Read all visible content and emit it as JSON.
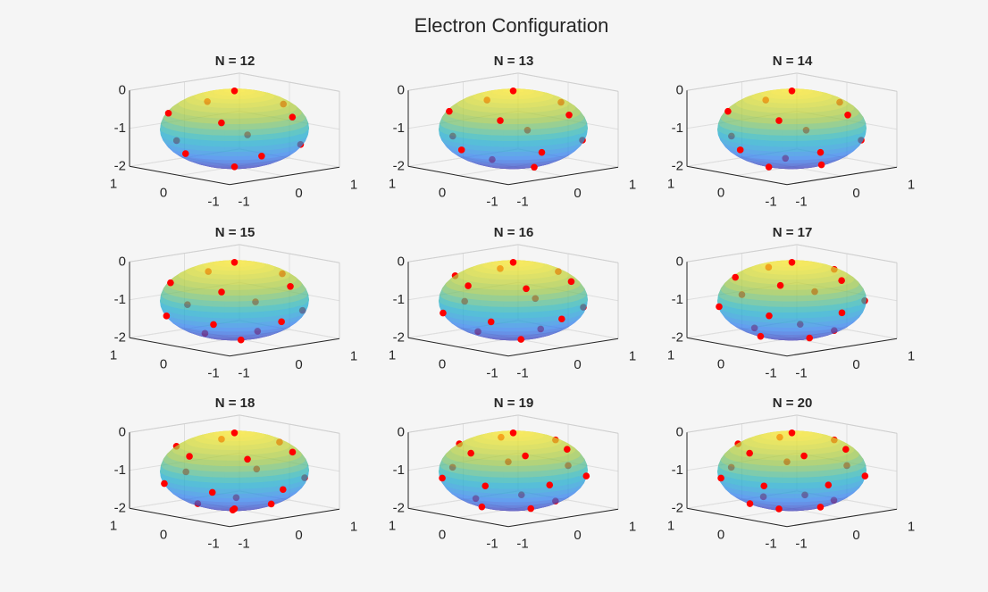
{
  "figure": {
    "title": "Electron Configuration",
    "background": "#f5f5f5"
  },
  "style": {
    "point_color": "#ff0000",
    "surface_colormap": "parula",
    "surface_alpha": 0.72,
    "view": {
      "azimuth": -37.5,
      "elevation": 30
    }
  },
  "axes_common": {
    "xlim": [
      -1,
      1
    ],
    "ylim": [
      -1,
      1
    ],
    "zlim": [
      -2,
      0
    ],
    "xticks": [
      "-1",
      "0",
      "1"
    ],
    "yticks": [
      "-1",
      "0",
      "1"
    ],
    "zticks": [
      "-2",
      "-1",
      "0"
    ],
    "grid": true,
    "surface": {
      "shape": "sphere",
      "center": [
        0,
        0,
        -1
      ],
      "radius": 1
    }
  },
  "chart_data": [
    {
      "type": "scatter3",
      "title": "N = 12",
      "points": [
        [
          0,
          0,
          0
        ],
        [
          0.89,
          0,
          -0.55
        ],
        [
          0.28,
          0.85,
          -0.55
        ],
        [
          -0.72,
          0.53,
          -0.55
        ],
        [
          -0.72,
          -0.53,
          -0.55
        ],
        [
          0.28,
          -0.85,
          -0.55
        ],
        [
          0.72,
          0.53,
          -1.45
        ],
        [
          -0.28,
          0.85,
          -1.45
        ],
        [
          -0.89,
          0,
          -1.45
        ],
        [
          -0.28,
          -0.85,
          -1.45
        ],
        [
          0.72,
          -0.53,
          -1.45
        ],
        [
          0,
          0,
          -2
        ]
      ]
    },
    {
      "type": "scatter3",
      "title": "N = 13",
      "points": [
        [
          0,
          0,
          0
        ],
        [
          0.87,
          0,
          -0.5
        ],
        [
          0.27,
          0.82,
          -0.5
        ],
        [
          -0.7,
          0.51,
          -0.5
        ],
        [
          -0.7,
          -0.51,
          -0.5
        ],
        [
          0.27,
          -0.82,
          -0.5
        ],
        [
          0.76,
          0.55,
          -1.34
        ],
        [
          -0.29,
          0.89,
          -1.34
        ],
        [
          -0.94,
          0,
          -1.34
        ],
        [
          -0.29,
          -0.89,
          -1.34
        ],
        [
          0.76,
          -0.55,
          -1.34
        ],
        [
          0,
          0.42,
          -1.91
        ],
        [
          0,
          -0.42,
          -1.91
        ]
      ]
    },
    {
      "type": "scatter3",
      "title": "N = 14",
      "points": [
        [
          0,
          0,
          0
        ],
        [
          0.87,
          0,
          -0.5
        ],
        [
          0.27,
          0.82,
          -0.5
        ],
        [
          -0.7,
          0.51,
          -0.5
        ],
        [
          -0.7,
          -0.51,
          -0.5
        ],
        [
          0.27,
          -0.82,
          -0.5
        ],
        [
          0.76,
          0.55,
          -1.34
        ],
        [
          -0.29,
          0.89,
          -1.34
        ],
        [
          -0.94,
          0,
          -1.34
        ],
        [
          -0.29,
          -0.89,
          -1.34
        ],
        [
          0.76,
          -0.55,
          -1.34
        ],
        [
          0.21,
          0.36,
          -1.91
        ],
        [
          -0.42,
          0,
          -1.91
        ],
        [
          0.21,
          -0.36,
          -1.91
        ]
      ]
    },
    {
      "type": "scatter3",
      "title": "N = 15",
      "points": [
        [
          0,
          0,
          0
        ],
        [
          0.87,
          0,
          -0.5
        ],
        [
          0.27,
          0.82,
          -0.5
        ],
        [
          -0.7,
          0.51,
          -0.5
        ],
        [
          -0.7,
          -0.51,
          -0.5
        ],
        [
          0.27,
          -0.82,
          -0.5
        ],
        [
          0.81,
          0.47,
          -1.34
        ],
        [
          0,
          0.94,
          -1.34
        ],
        [
          -0.81,
          0.47,
          -1.34
        ],
        [
          -0.81,
          -0.47,
          -1.34
        ],
        [
          0,
          -0.94,
          -1.34
        ],
        [
          0.81,
          -0.47,
          -1.34
        ],
        [
          0.42,
          0,
          -1.91
        ],
        [
          -0.21,
          0.36,
          -1.91
        ],
        [
          -0.21,
          -0.36,
          -1.91
        ]
      ]
    },
    {
      "type": "scatter3",
      "title": "N = 16",
      "points": [
        [
          0,
          0,
          0
        ],
        [
          0.82,
          0,
          -0.43
        ],
        [
          0.41,
          0.71,
          -0.43
        ],
        [
          -0.41,
          0.71,
          -0.43
        ],
        [
          -0.82,
          0,
          -0.43
        ],
        [
          -0.41,
          -0.71,
          -0.43
        ],
        [
          0.41,
          -0.71,
          -0.43
        ],
        [
          0.84,
          0.48,
          -1.26
        ],
        [
          0,
          0.97,
          -1.26
        ],
        [
          -0.84,
          0.48,
          -1.26
        ],
        [
          -0.84,
          -0.48,
          -1.26
        ],
        [
          0,
          -0.97,
          -1.26
        ],
        [
          0.84,
          -0.48,
          -1.26
        ],
        [
          0.5,
          0,
          -1.87
        ],
        [
          -0.25,
          0.43,
          -1.87
        ],
        [
          -0.25,
          -0.43,
          -1.87
        ]
      ]
    },
    {
      "type": "scatter3",
      "title": "N = 17",
      "points": [
        [
          0,
          0,
          0
        ],
        [
          0.77,
          0,
          -0.36
        ],
        [
          0.24,
          0.73,
          -0.36
        ],
        [
          -0.62,
          0.45,
          -0.36
        ],
        [
          -0.62,
          -0.45,
          -0.36
        ],
        [
          0.24,
          -0.73,
          -0.36
        ],
        [
          0.87,
          0.5,
          -1.09
        ],
        [
          0,
          1,
          -1.09
        ],
        [
          -0.87,
          0.5,
          -1.09
        ],
        [
          -0.87,
          -0.5,
          -1.09
        ],
        [
          0,
          -1,
          -1.09
        ],
        [
          0.87,
          -0.5,
          -1.09
        ],
        [
          0.46,
          0.34,
          -1.82
        ],
        [
          -0.18,
          0.55,
          -1.82
        ],
        [
          -0.57,
          0,
          -1.82
        ],
        [
          -0.18,
          -0.55,
          -1.82
        ],
        [
          0.46,
          -0.34,
          -1.82
        ]
      ]
    },
    {
      "type": "scatter3",
      "title": "N = 18",
      "points": [
        [
          0,
          0,
          0
        ],
        [
          0.82,
          0,
          -0.43
        ],
        [
          0.41,
          0.71,
          -0.43
        ],
        [
          -0.41,
          0.71,
          -0.43
        ],
        [
          -0.82,
          0,
          -0.43
        ],
        [
          -0.41,
          -0.71,
          -0.43
        ],
        [
          0.41,
          -0.71,
          -0.43
        ],
        [
          0.84,
          0.48,
          -1.26
        ],
        [
          0,
          0.97,
          -1.26
        ],
        [
          -0.84,
          0.48,
          -1.26
        ],
        [
          -0.84,
          -0.48,
          -1.26
        ],
        [
          0,
          -0.97,
          -1.26
        ],
        [
          0.84,
          -0.48,
          -1.26
        ],
        [
          0.35,
          0.35,
          -1.87
        ],
        [
          -0.35,
          0.35,
          -1.87
        ],
        [
          -0.35,
          -0.35,
          -1.87
        ],
        [
          0.35,
          -0.35,
          -1.87
        ],
        [
          0,
          0,
          -2
        ]
      ]
    },
    {
      "type": "scatter3",
      "title": "N = 19",
      "points": [
        [
          0,
          0,
          0
        ],
        [
          0.77,
          0,
          -0.36
        ],
        [
          0.38,
          0.66,
          -0.36
        ],
        [
          -0.38,
          0.66,
          -0.36
        ],
        [
          -0.77,
          0,
          -0.36
        ],
        [
          -0.38,
          -0.66,
          -0.36
        ],
        [
          0.38,
          -0.66,
          -0.36
        ],
        [
          1,
          0,
          -1.09
        ],
        [
          0.62,
          0.78,
          -1.09
        ],
        [
          -0.22,
          0.97,
          -1.09
        ],
        [
          -0.9,
          0.43,
          -1.09
        ],
        [
          -0.9,
          -0.43,
          -1.09
        ],
        [
          -0.22,
          -0.97,
          -1.09
        ],
        [
          0.62,
          -0.78,
          -1.09
        ],
        [
          0.46,
          0.34,
          -1.82
        ],
        [
          -0.18,
          0.55,
          -1.82
        ],
        [
          -0.57,
          0,
          -1.82
        ],
        [
          -0.18,
          -0.55,
          -1.82
        ],
        [
          0.46,
          -0.34,
          -1.82
        ]
      ]
    },
    {
      "type": "scatter3",
      "title": "N = 20",
      "points": [
        [
          0,
          0,
          0
        ],
        [
          0.77,
          0,
          -0.36
        ],
        [
          0.38,
          0.66,
          -0.36
        ],
        [
          -0.38,
          0.66,
          -0.36
        ],
        [
          -0.77,
          0,
          -0.36
        ],
        [
          -0.38,
          -0.66,
          -0.36
        ],
        [
          0.38,
          -0.66,
          -0.36
        ],
        [
          1,
          0,
          -1.09
        ],
        [
          0.62,
          0.78,
          -1.09
        ],
        [
          -0.22,
          0.97,
          -1.09
        ],
        [
          -0.9,
          0.43,
          -1.09
        ],
        [
          -0.9,
          -0.43,
          -1.09
        ],
        [
          -0.22,
          -0.97,
          -1.09
        ],
        [
          0.62,
          -0.78,
          -1.09
        ],
        [
          0.5,
          0.29,
          -1.82
        ],
        [
          0,
          0.57,
          -1.82
        ],
        [
          -0.5,
          0.29,
          -1.82
        ],
        [
          -0.5,
          -0.29,
          -1.82
        ],
        [
          0,
          -0.57,
          -1.82
        ],
        [
          0.5,
          -0.29,
          -1.82
        ]
      ]
    }
  ]
}
